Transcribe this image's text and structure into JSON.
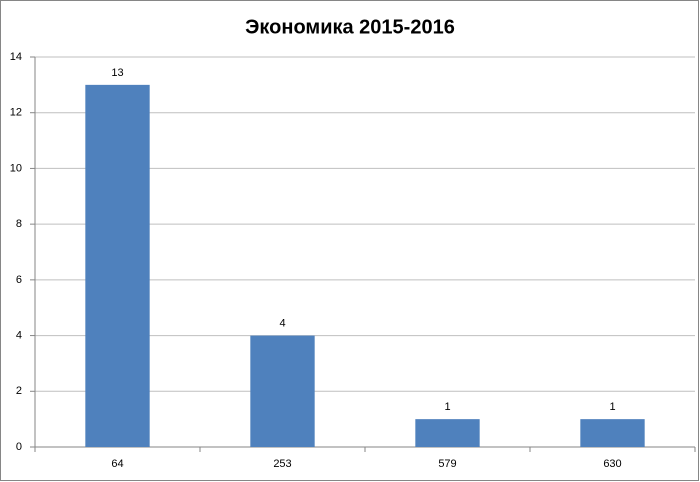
{
  "chart_data": {
    "type": "bar",
    "title": "Экономика 2015-2016",
    "categories": [
      "64",
      "253",
      "579",
      "630"
    ],
    "values": [
      13,
      4,
      1,
      1
    ],
    "color": "#4f81bd",
    "ylim": [
      0,
      14
    ],
    "yticks": [
      0,
      2,
      4,
      6,
      8,
      10,
      12,
      14
    ],
    "grid": true
  }
}
